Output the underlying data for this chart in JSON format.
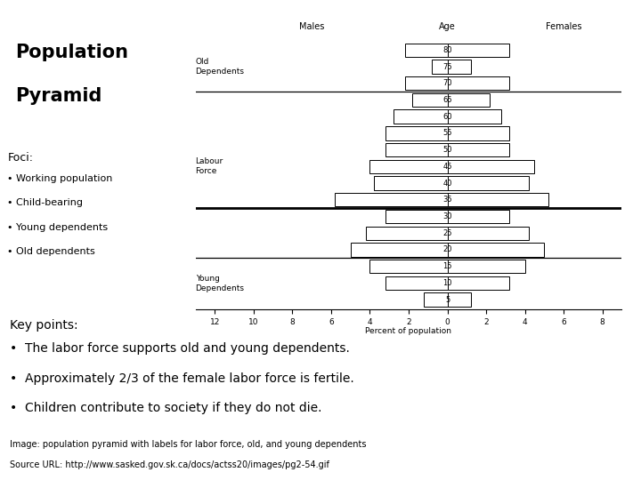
{
  "title_line1": "Population",
  "title_line2": "Pyramid",
  "age_groups": [
    "5",
    "10",
    "15",
    "20",
    "25",
    "30",
    "35",
    "40",
    "45",
    "50",
    "55",
    "60",
    "65",
    "70",
    "75",
    "80"
  ],
  "males": [
    1.2,
    3.2,
    4.0,
    5.0,
    4.2,
    3.2,
    5.8,
    3.8,
    4.0,
    3.2,
    3.2,
    2.8,
    1.8,
    2.2,
    0.8,
    2.2
  ],
  "females": [
    1.2,
    3.2,
    4.0,
    5.0,
    4.2,
    3.2,
    5.2,
    4.2,
    4.5,
    3.2,
    3.2,
    2.8,
    2.2,
    3.2,
    1.2,
    3.2
  ],
  "xlabel": "Percent of population",
  "header_males": "Males",
  "header_age": "Age",
  "header_females": "Females",
  "label_old": "Old\nDependents",
  "label_labour": "Labour\nForce",
  "label_young": "Young\nDependents",
  "old_line_idx": 12.5,
  "young_line_idx": 2.5,
  "childbearing_line_idx": 5.5,
  "bg_color": "#ffffff",
  "bar_color": "#ffffff",
  "bar_edge": "#000000",
  "text_color": "#000000",
  "foci_title": "Foci:",
  "foci_items": [
    "Working population",
    "Child-bearing",
    "Young dependents",
    "Old dependents"
  ],
  "key_points_title": "Key points:",
  "key_points": [
    "The labor force supports old and young dependents.",
    "Approximately 2/3 of the female labor force is fertile.",
    "Children contribute to society if they do not die."
  ],
  "image_note": "Image: population pyramid with labels for labor force, old, and young dependents",
  "source_note": "Source URL: http://www.sasked.gov.sk.ca/docs/actss20/images/pg2-54.gif"
}
